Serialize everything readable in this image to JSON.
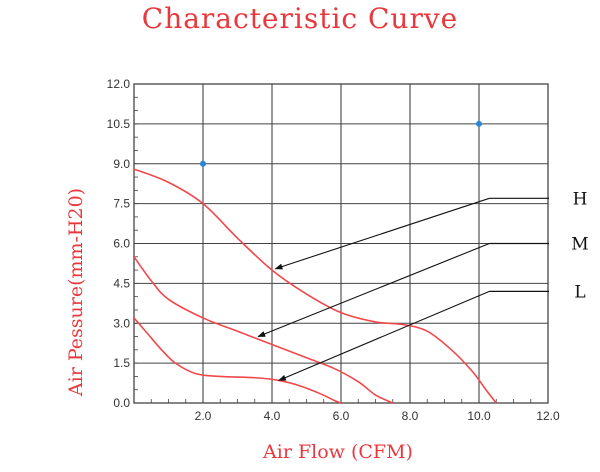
{
  "chart_data": {
    "type": "line",
    "title": "Characteristic Curve",
    "xlabel": "Air Flow (CFM)",
    "ylabel": "Air Pessure(mm-H20)",
    "xlim": [
      0,
      12
    ],
    "ylim": [
      0,
      12
    ],
    "x_ticks": [
      "2.0",
      "4.0",
      "6.0",
      "8.0",
      "10.0",
      "12.0"
    ],
    "y_ticks": [
      "0.0",
      "1.5",
      "3.0",
      "4.5",
      "6.0",
      "7.5",
      "9.0",
      "10.5",
      "12.0"
    ],
    "grid": true,
    "series": [
      {
        "name": "H",
        "x": [
          0,
          1,
          2,
          3,
          4,
          5,
          6,
          7,
          7.8,
          8.5,
          9.2,
          9.8,
          10.2,
          10.5
        ],
        "y": [
          8.8,
          8.3,
          7.5,
          6.2,
          5.0,
          4.1,
          3.4,
          3.05,
          2.95,
          2.7,
          2.0,
          1.2,
          0.5,
          0.0
        ]
      },
      {
        "name": "M",
        "x": [
          0,
          0.5,
          1,
          2,
          3,
          4,
          5,
          5.8,
          6.5,
          7.0,
          7.5
        ],
        "y": [
          5.5,
          4.6,
          3.9,
          3.2,
          2.7,
          2.2,
          1.7,
          1.3,
          0.8,
          0.3,
          0.0
        ]
      },
      {
        "name": "L",
        "x": [
          0,
          0.4,
          0.8,
          1.2,
          1.8,
          2.5,
          3.5,
          4.2,
          4.8,
          5.4,
          5.8,
          6.0
        ],
        "y": [
          3.2,
          2.6,
          2.0,
          1.5,
          1.1,
          1.0,
          0.95,
          0.85,
          0.65,
          0.35,
          0.1,
          0.0
        ]
      }
    ],
    "markers": [
      {
        "x": 2.0,
        "y": 9.0
      },
      {
        "x": 10.0,
        "y": 10.5
      }
    ],
    "labels": [
      "H",
      "M",
      "L"
    ],
    "colors": {
      "curve": "#f0484b",
      "title": "#e8383d",
      "marker": "#2a86d6",
      "grid": "#444444",
      "pointer": "#111111"
    }
  }
}
